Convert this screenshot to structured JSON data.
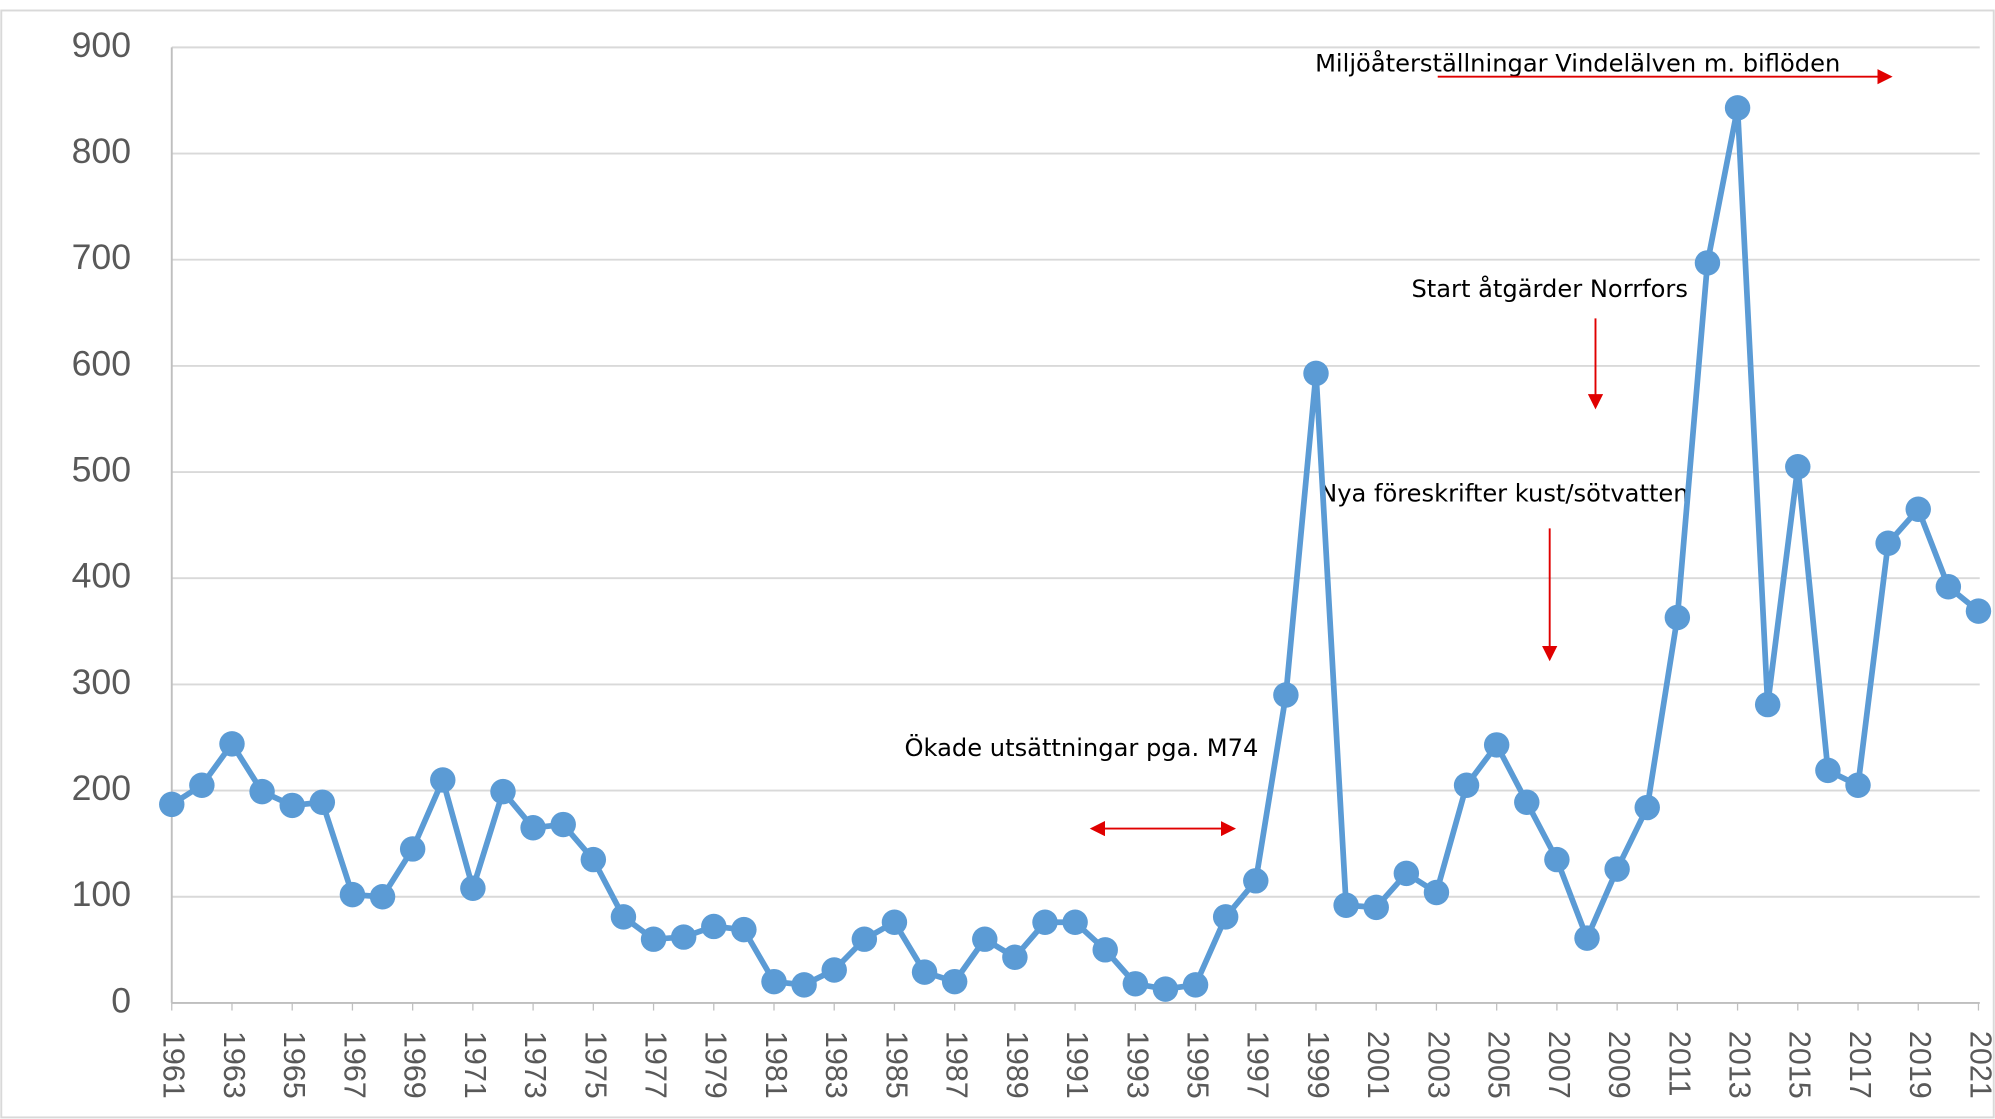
{
  "chart_data": {
    "type": "line",
    "x": [
      1961,
      1962,
      1963,
      1964,
      1965,
      1966,
      1967,
      1968,
      1969,
      1970,
      1971,
      1972,
      1973,
      1974,
      1975,
      1976,
      1977,
      1978,
      1979,
      1980,
      1981,
      1982,
      1983,
      1984,
      1985,
      1986,
      1987,
      1988,
      1989,
      1990,
      1991,
      1992,
      1993,
      1994,
      1995,
      1996,
      1997,
      1998,
      1999,
      2000,
      2001,
      2002,
      2003,
      2004,
      2005,
      2006,
      2007,
      2008,
      2009,
      2010,
      2011,
      2012,
      2013,
      2014,
      2015,
      2016,
      2017,
      2018,
      2019,
      2020,
      2021
    ],
    "series": [
      {
        "color": "#5b9bd5",
        "values": [
          187,
          205,
          244,
          199,
          186,
          189,
          102,
          100,
          145,
          210,
          108,
          199,
          165,
          168,
          135,
          81,
          60,
          62,
          72,
          69,
          20,
          17,
          31,
          60,
          76,
          29,
          20,
          60,
          43,
          76,
          76,
          50,
          18,
          13,
          17,
          81,
          115,
          290,
          593,
          92,
          90,
          122,
          104,
          205,
          243,
          189,
          135,
          61,
          126,
          184,
          363,
          697,
          843,
          281,
          505,
          219,
          205,
          433,
          465,
          392,
          369
        ]
      }
    ],
    "xlim": [
      1961,
      2021
    ],
    "xticks": [
      1961,
      1963,
      1965,
      1967,
      1969,
      1971,
      1973,
      1975,
      1977,
      1979,
      1981,
      1983,
      1985,
      1987,
      1989,
      1991,
      1993,
      1995,
      1997,
      1999,
      2001,
      2003,
      2005,
      2007,
      2009,
      2011,
      2013,
      2015,
      2017,
      2019,
      2021
    ],
    "ylim": [
      0,
      900
    ],
    "yticks": [
      0,
      100,
      200,
      300,
      400,
      500,
      600,
      700,
      800,
      900
    ],
    "grid": true,
    "annotations": [
      "Miljöåterställningar Vindelälven m. biflöden",
      "Start åtgärder Norrfors",
      "Nya föreskrifter kust/sötvatten",
      "Ökade utsättningar pga. M74"
    ]
  }
}
